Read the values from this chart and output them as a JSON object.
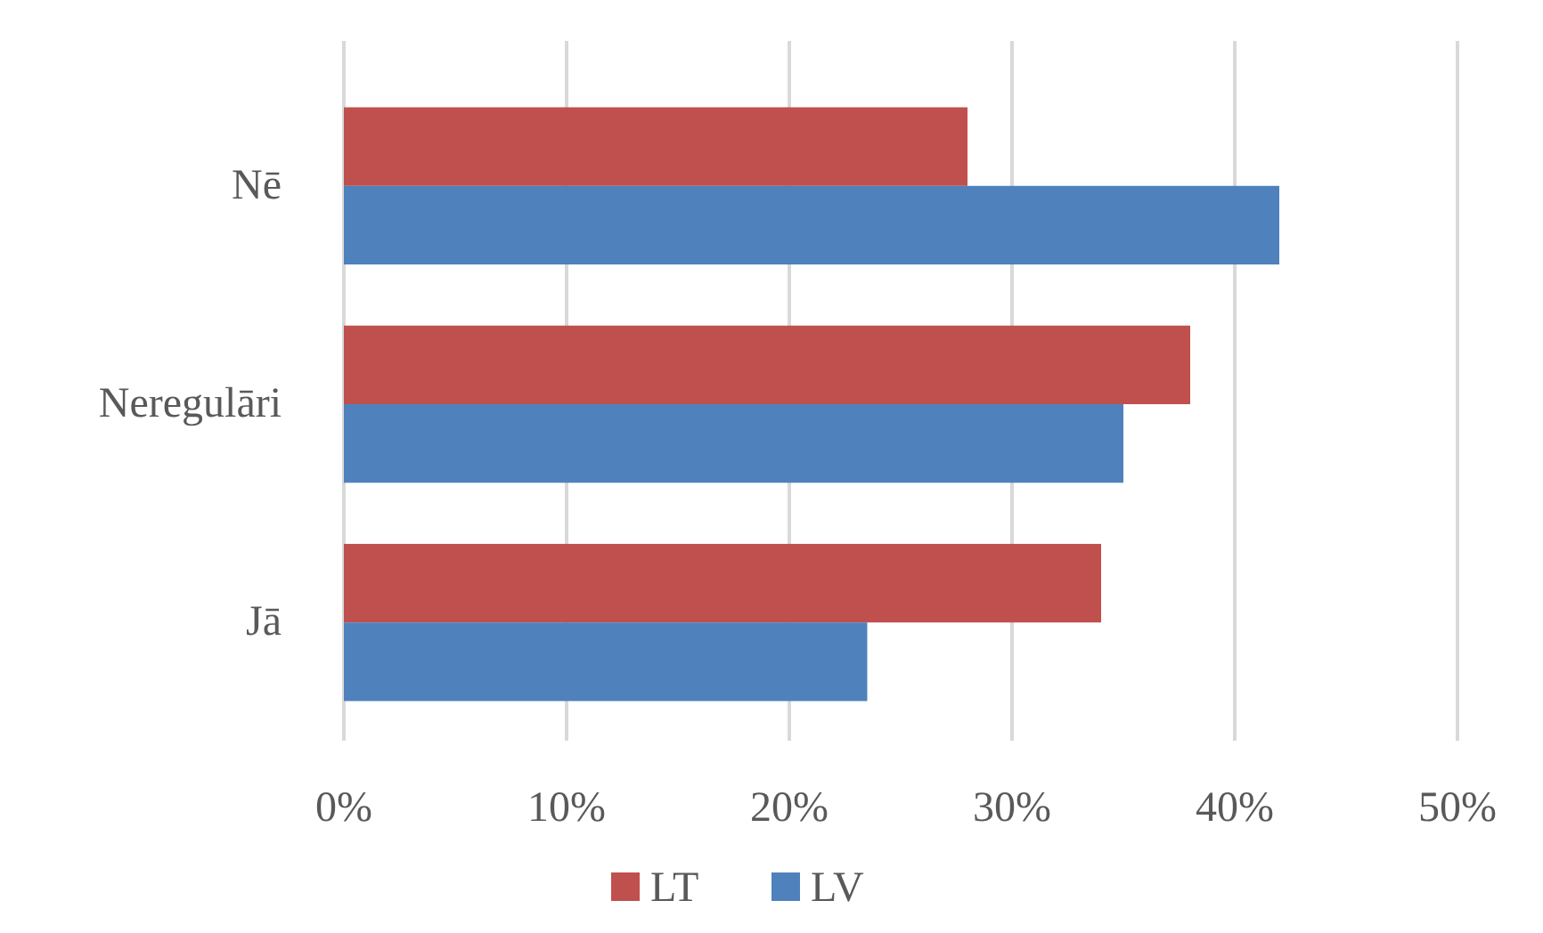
{
  "chart_data": {
    "type": "bar",
    "orientation": "horizontal",
    "categories": [
      "Nē",
      "Neregulāri",
      "Jā"
    ],
    "series": [
      {
        "name": "LT",
        "color": "#c0504d",
        "values": [
          28,
          38,
          34
        ]
      },
      {
        "name": "LV",
        "color": "#4f81bd",
        "values": [
          42,
          35,
          23.5
        ]
      }
    ],
    "xlim": [
      0,
      50
    ],
    "xticks": [
      {
        "value": 0,
        "label": "0%"
      },
      {
        "value": 10,
        "label": "10%"
      },
      {
        "value": 20,
        "label": "20%"
      },
      {
        "value": 30,
        "label": "30%"
      },
      {
        "value": 40,
        "label": "40%"
      },
      {
        "value": 50,
        "label": "50%"
      }
    ],
    "grid": "x",
    "legend": "bottom"
  }
}
